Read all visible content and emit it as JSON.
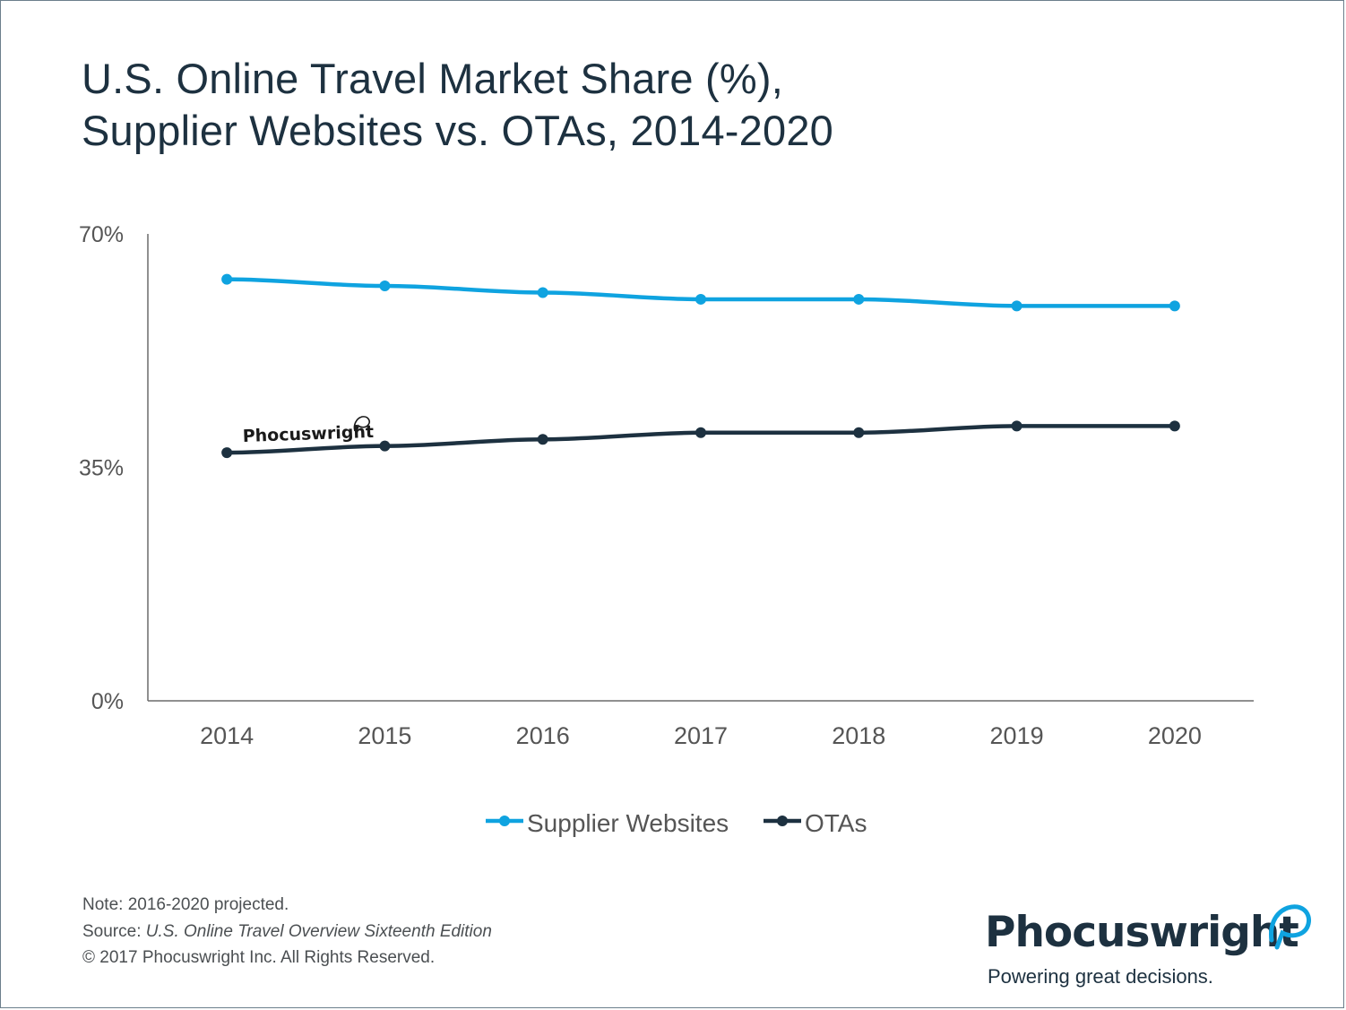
{
  "title_lines": [
    "U.S. Online Travel Market Share (%),",
    "Supplier Websites vs. OTAs, 2014-2020"
  ],
  "colors": {
    "supplier": "#0fa3e0",
    "otas": "#1d3140",
    "axis": "#6b6b6b",
    "text": "#555555"
  },
  "chart_data": {
    "type": "line",
    "title": "U.S. Online Travel Market Share (%), Supplier Websites vs. OTAs, 2014-2020",
    "categories": [
      "2014",
      "2015",
      "2016",
      "2017",
      "2018",
      "2019",
      "2020"
    ],
    "yticks": [
      "0%",
      "35%",
      "70%"
    ],
    "ylim": [
      0,
      70
    ],
    "series": [
      {
        "name": "Supplier Websites",
        "color": "#0fa3e0",
        "values": [
          63.2,
          62.2,
          61.2,
          60.2,
          60.2,
          59.2,
          59.2
        ]
      },
      {
        "name": "OTAs",
        "color": "#1d3140",
        "values": [
          37.2,
          38.2,
          39.2,
          40.2,
          40.2,
          41.2,
          41.2
        ]
      }
    ],
    "legend": "bottom-center",
    "grid": false,
    "watermark": "Phocuswright"
  },
  "footer": {
    "note": "Note: 2016-2020 projected.",
    "source_prefix": "Source: ",
    "source_title": "U.S. Online Travel Overview Sixteenth Edition",
    "copyright": "© 2017 Phocuswright Inc. All Rights Reserved."
  },
  "logo": {
    "name": "Phocuswright",
    "tagline": "Powering great decisions."
  }
}
